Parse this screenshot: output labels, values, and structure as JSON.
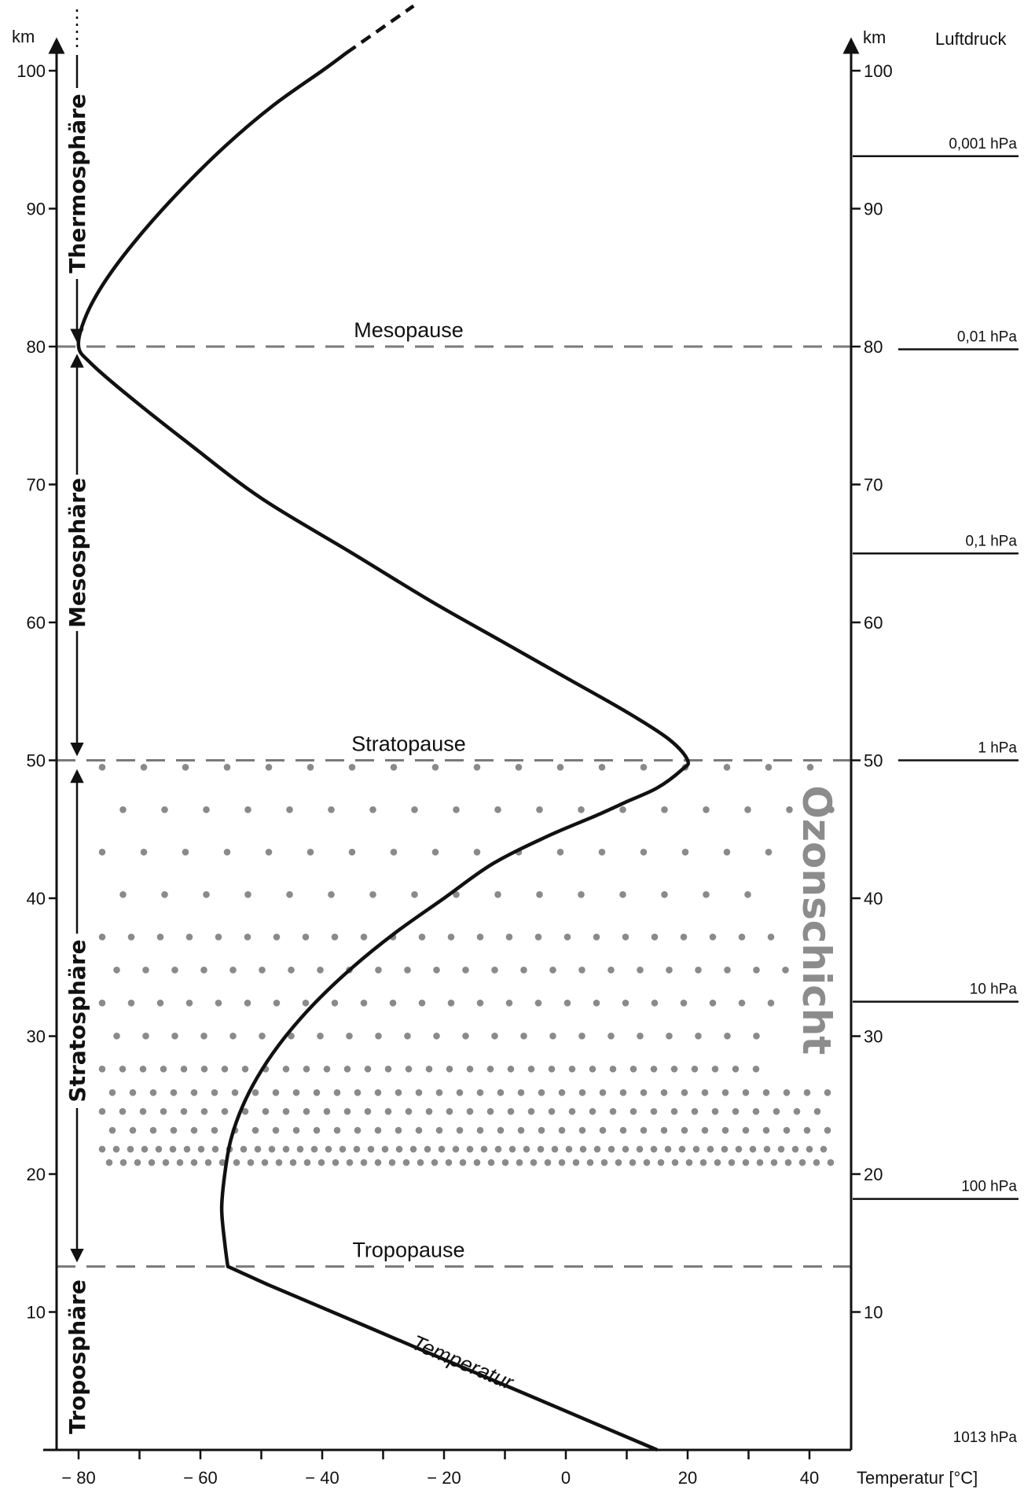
{
  "chart_data": {
    "type": "line",
    "xlabel": "Temperatur [°C]",
    "ylabel_left": "km",
    "ylabel_right": "km",
    "pressure_label": "Luftdruck",
    "xlim": [
      -85,
      45
    ],
    "ylim": [
      0,
      104
    ],
    "x_ticks": [
      -80,
      -60,
      -40,
      -20,
      0,
      20,
      40
    ],
    "x_tick_labels": [
      "− 80",
      "− 60",
      "− 40",
      "− 20",
      "0",
      "20",
      "40"
    ],
    "y_ticks": [
      10,
      20,
      30,
      40,
      50,
      60,
      70,
      80,
      90,
      100
    ],
    "y_tick_labels": [
      "10",
      "20",
      "30",
      "40",
      "50",
      "60",
      "70",
      "80",
      "90",
      "100"
    ],
    "series": [
      {
        "name": "Temperatur",
        "x": [
          15,
          7,
          -1,
          -9,
          -17,
          -25,
          -33,
          -41,
          -49,
          -55.5,
          -56,
          -56.5,
          -56,
          -55,
          -53,
          -50,
          -46,
          -41,
          -35,
          -28,
          -20,
          -12,
          -3,
          5,
          10,
          15,
          19,
          20,
          17,
          10,
          0,
          -10,
          -22,
          -35,
          -50,
          -62,
          -72,
          -78,
          -80,
          -79,
          -76,
          -71,
          -64,
          -56,
          -48,
          -40,
          -36
        ],
        "y": [
          0,
          1.5,
          3,
          4.5,
          6,
          7.5,
          9,
          10.5,
          12,
          13.3,
          15,
          17.5,
          20,
          22.5,
          25,
          27.5,
          30,
          32.5,
          35,
          37.5,
          40,
          42.5,
          44.5,
          46,
          47,
          48,
          49.3,
          50,
          51.5,
          53.5,
          56,
          58.5,
          61.5,
          65,
          69,
          73,
          76.5,
          78.8,
          80,
          82,
          84.5,
          87.5,
          91,
          94.5,
          97.5,
          100,
          101.3
        ]
      },
      {
        "name": "Temperatur (extrapoliert)",
        "x": [
          -36,
          -25
        ],
        "y": [
          101.3,
          104.7
        ]
      }
    ],
    "boundaries": [
      {
        "name": "Tropopause",
        "km": 13.3
      },
      {
        "name": "Stratopause",
        "km": 50
      },
      {
        "name": "Mesopause",
        "km": 80
      }
    ],
    "layers": [
      {
        "name": "Troposphäre",
        "from_km": 0,
        "to_km": 13.3
      },
      {
        "name": "Stratosphäre",
        "from_km": 13.3,
        "to_km": 50
      },
      {
        "name": "Mesosphäre",
        "from_km": 50,
        "to_km": 80
      },
      {
        "name": "Thermosphäre",
        "from_km": 80,
        "to_km": 104
      }
    ],
    "ozone_layer": {
      "label": "Ozonschicht",
      "from_km": 20.5,
      "to_km": 49.5
    },
    "pressure_levels": [
      {
        "label": "1013 hPa",
        "km": 0
      },
      {
        "label": "100 hPa",
        "km": 18.2
      },
      {
        "label": "10 hPa",
        "km": 32.5
      },
      {
        "label": "1 hPa",
        "km": 50
      },
      {
        "label": "0,1 hPa",
        "km": 65
      },
      {
        "label": "0,01 hPa",
        "km": 79.8
      },
      {
        "label": "0,001 hPa",
        "km": 93.8
      }
    ],
    "curve_label": "Temperatur",
    "grid": false
  }
}
